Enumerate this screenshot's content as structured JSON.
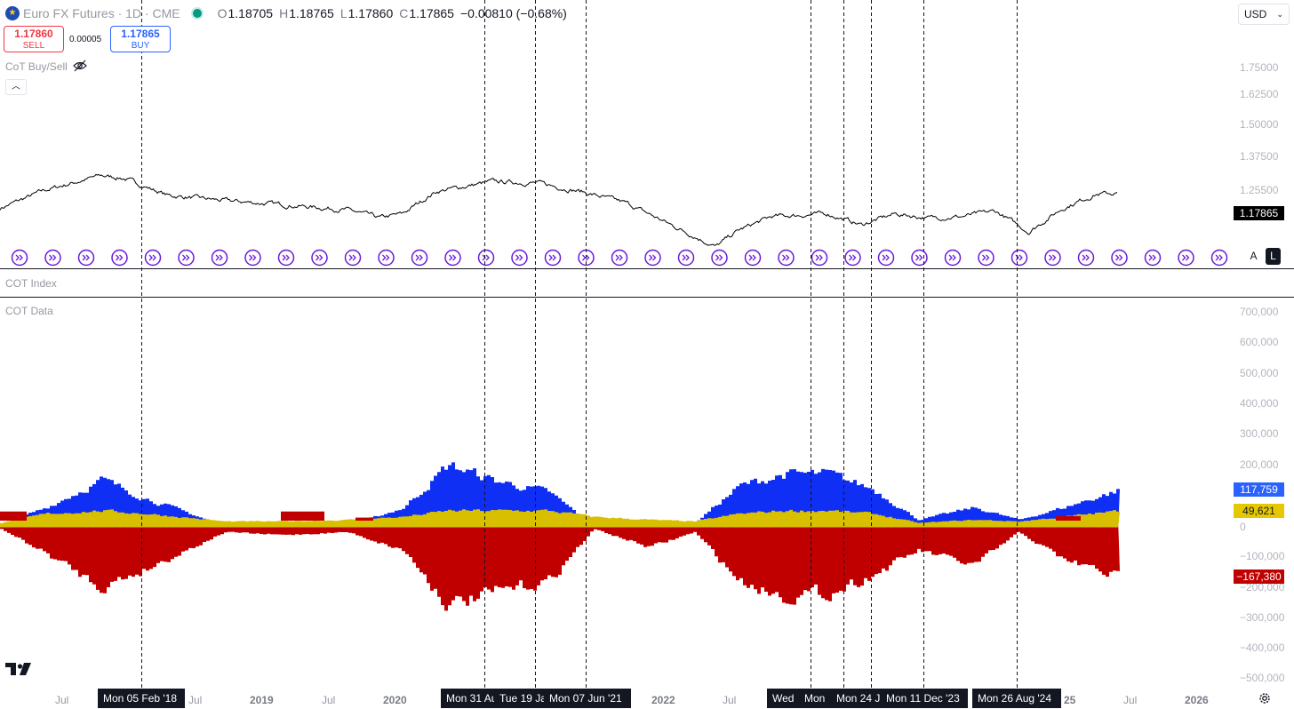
{
  "header": {
    "symbol": "Euro FX Futures · 1D · CME",
    "ohlc": [
      {
        "k": "O",
        "v": "1.18705"
      },
      {
        "k": "H",
        "v": "1.18765"
      },
      {
        "k": "L",
        "v": "1.17860"
      },
      {
        "k": "C",
        "v": "1.17865"
      }
    ],
    "change": "−0.00810 (−0.68%)"
  },
  "trade": {
    "sell_price": "1.17860",
    "sell_label": "SELL",
    "spread": "0.00005",
    "buy_price": "1.17865",
    "buy_label": "BUY"
  },
  "currency": "USD",
  "indicators": {
    "cot_buysell": "CoT Buy/Sell",
    "cot_index": "COT Index",
    "cot_data": "COT Data"
  },
  "scale_buttons": {
    "a": "A",
    "l": "L"
  },
  "price_axis": {
    "ticks": [
      "1.75000",
      "1.62500",
      "1.50000",
      "1.37500",
      "1.25500"
    ],
    "last": "1.17865"
  },
  "cot_axis": {
    "ticks": [
      "700,000",
      "600,000",
      "500,000",
      "400,000",
      "300,000",
      "200,000",
      "−100,000",
      "−200,000",
      "−300,000",
      "−400,000",
      "−500,000"
    ],
    "zero": "0",
    "commercials_long": "117,759",
    "open_interest": "49,621",
    "commercials_short": "−167,380"
  },
  "time_axis": [
    {
      "t": "Jul",
      "year": false
    },
    {
      "t": "Jul",
      "year": false
    },
    {
      "t": "2019",
      "year": true
    },
    {
      "t": "Jul",
      "year": false
    },
    {
      "t": "2020",
      "year": true
    },
    {
      "t": "2022",
      "year": true
    },
    {
      "t": "Jul",
      "year": false
    },
    {
      "t": "25",
      "year": true
    },
    {
      "t": "Jul",
      "year": false
    },
    {
      "t": "2026",
      "year": true
    }
  ],
  "cross_labels": [
    "Mon 05 Feb '18",
    "Mon 31 Au",
    "Tue 19 Ja",
    "Mon 07 Jun '21",
    "Wed ",
    "Mon ",
    "Mon 24 J",
    "Mon 11 Dec '23",
    "Mon 26 Aug '24"
  ],
  "colors": {
    "price_line": "#000000",
    "long_bars": "#0f2ff5",
    "short_bars": "#c00000",
    "open_interest": "#d8c000",
    "signal_icon": "#6a1bd8",
    "crosshair": "#131722"
  },
  "chart_data": [
    {
      "type": "line",
      "name": "Euro FX Futures price",
      "x": [
        "2017-05",
        "2017-09",
        "2018-02",
        "2018-04",
        "2018-08",
        "2019-01",
        "2019-06",
        "2019-12",
        "2020-03",
        "2020-05",
        "2020-08",
        "2021-01",
        "2021-05",
        "2021-09",
        "2022-01",
        "2022-05",
        "2022-09",
        "2022-11",
        "2023-02",
        "2023-07",
        "2023-10",
        "2024-01",
        "2024-04",
        "2024-07",
        "2024-10",
        "2025-01",
        "2025-04",
        "2025-07",
        "2025-09"
      ],
      "y": [
        1.12,
        1.19,
        1.25,
        1.24,
        1.17,
        1.15,
        1.135,
        1.115,
        1.085,
        1.1,
        1.185,
        1.225,
        1.22,
        1.185,
        1.14,
        1.06,
        0.985,
        1.04,
        1.09,
        1.1,
        1.06,
        1.1,
        1.085,
        1.09,
        1.11,
        1.035,
        1.12,
        1.175,
        1.179
      ],
      "ylim": [
        0.95,
        1.8
      ]
    },
    {
      "type": "bar",
      "title": "COT Data",
      "x": [
        "2017-05",
        "2017-09",
        "2018-02",
        "2018-06",
        "2019-01",
        "2019-06",
        "2019-12",
        "2020-05",
        "2020-09",
        "2021-01",
        "2021-06",
        "2021-10",
        "2022-03",
        "2022-07",
        "2022-11",
        "2023-03",
        "2023-07",
        "2023-11",
        "2024-03",
        "2024-08",
        "2024-12",
        "2025-04",
        "2025-09"
      ],
      "series": [
        {
          "name": "Commercials long",
          "values": [
            5000,
            60000,
            150000,
            90000,
            0,
            0,
            0,
            60000,
            200000,
            150000,
            110000,
            0,
            0,
            10000,
            130000,
            170000,
            170000,
            120000,
            20000,
            60000,
            20000,
            60000,
            117759
          ]
        },
        {
          "name": "Commercials short",
          "values": [
            -10000,
            -90000,
            -200000,
            -140000,
            -20000,
            -30000,
            -20000,
            -80000,
            -260000,
            -220000,
            -180000,
            -10000,
            -70000,
            -20000,
            -180000,
            -230000,
            -220000,
            -160000,
            -80000,
            -130000,
            -20000,
            -110000,
            -167380
          ]
        },
        {
          "name": "Open interest",
          "values": [
            10000,
            40000,
            50000,
            40000,
            15000,
            15000,
            20000,
            30000,
            50000,
            50000,
            50000,
            30000,
            20000,
            15000,
            40000,
            50000,
            50000,
            40000,
            10000,
            20000,
            15000,
            30000,
            49621
          ]
        }
      ],
      "ylim": [
        -500000,
        700000
      ]
    }
  ]
}
